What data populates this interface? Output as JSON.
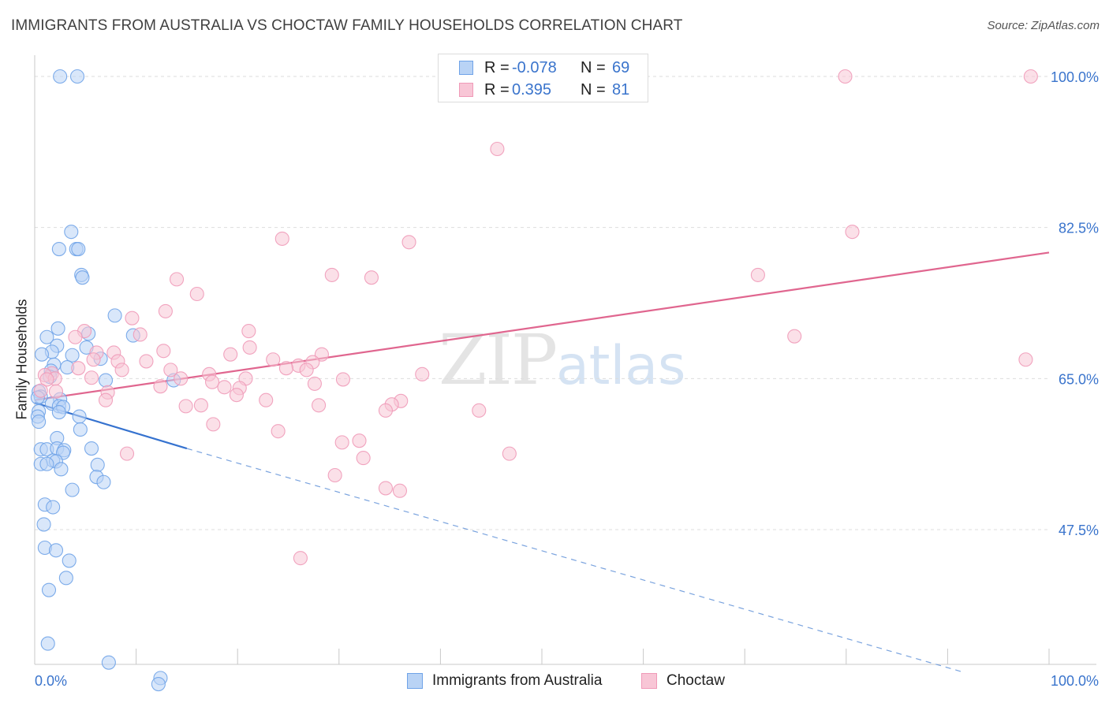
{
  "title": "IMMIGRANTS FROM AUSTRALIA VS CHOCTAW FAMILY HOUSEHOLDS CORRELATION CHART",
  "source": "Source: ZipAtlas.com",
  "watermark": {
    "zip": "ZIP",
    "atlas": "atlas"
  },
  "legend": {
    "rows": [
      {
        "r_label": "R =",
        "r_value": "-0.078",
        "n_label": "N =",
        "n_value": "69"
      },
      {
        "r_label": "R =",
        "r_value": "0.395",
        "n_label": "N =",
        "n_value": "81"
      }
    ]
  },
  "chart_data": {
    "type": "scatter",
    "title": "IMMIGRANTS FROM AUSTRALIA VS CHOCTAW FAMILY HOUSEHOLDS CORRELATION CHART",
    "xlabel": "",
    "ylabel": "Family Households",
    "xlim": [
      0,
      100
    ],
    "ylim": [
      31,
      101
    ],
    "x_tick_labels": [
      "0.0%",
      "100.0%"
    ],
    "y_ticks": [
      47.5,
      65.0,
      82.5,
      100.0
    ],
    "y_tick_labels": [
      "47.5%",
      "65.0%",
      "82.5%",
      "100.0%"
    ],
    "grid": true,
    "legend_position": "top-center",
    "series": [
      {
        "name": "Immigrants from Australia",
        "color": "#6fa3e8",
        "fill": "#b9d3f5",
        "r": -0.078,
        "n": 69,
        "trend": {
          "x0": 0,
          "y0": 62.2,
          "x1": 15,
          "y1": 56.9,
          "dashed_to_x": 91.5,
          "dashed_to_y": 31
        },
        "points": [
          [
            2.5,
            100
          ],
          [
            4.2,
            100
          ],
          [
            3.6,
            82
          ],
          [
            2.4,
            80
          ],
          [
            4.1,
            80
          ],
          [
            4.3,
            80
          ],
          [
            4.6,
            77
          ],
          [
            4.7,
            76.7
          ],
          [
            7.9,
            72.3
          ],
          [
            2.3,
            70.8
          ],
          [
            1.2,
            69.8
          ],
          [
            5.3,
            70.2
          ],
          [
            9.7,
            70
          ],
          [
            2.2,
            68.8
          ],
          [
            1.7,
            68.1
          ],
          [
            3.7,
            67.7
          ],
          [
            0.7,
            67.8
          ],
          [
            6.5,
            67.3
          ],
          [
            5.1,
            68.6
          ],
          [
            1.9,
            66.6
          ],
          [
            1.6,
            65.9
          ],
          [
            1.5,
            65.2
          ],
          [
            3.2,
            66.3
          ],
          [
            7,
            64.8
          ],
          [
            13.7,
            64.8
          ],
          [
            0.4,
            63.5
          ],
          [
            0.6,
            62.9
          ],
          [
            2.5,
            62.6
          ],
          [
            0.3,
            62.8
          ],
          [
            1.7,
            62.1
          ],
          [
            2.4,
            61.8
          ],
          [
            2.8,
            61.7
          ],
          [
            0.4,
            61.2
          ],
          [
            2.4,
            61.1
          ],
          [
            0.3,
            60.6
          ],
          [
            0.4,
            60
          ],
          [
            4.4,
            60.6
          ],
          [
            4.5,
            59.1
          ],
          [
            2.2,
            58.1
          ],
          [
            0.6,
            56.8
          ],
          [
            1.2,
            56.8
          ],
          [
            2.2,
            56.9
          ],
          [
            2.9,
            56.7
          ],
          [
            5.6,
            56.9
          ],
          [
            2.8,
            56.4
          ],
          [
            1.8,
            55.5
          ],
          [
            2.1,
            55.4
          ],
          [
            0.6,
            55.1
          ],
          [
            1.2,
            55.1
          ],
          [
            6.2,
            55
          ],
          [
            2.6,
            54.5
          ],
          [
            6.1,
            53.6
          ],
          [
            6.8,
            53
          ],
          [
            3.7,
            52.1
          ],
          [
            1,
            50.4
          ],
          [
            1.8,
            50.1
          ],
          [
            0.9,
            48.1
          ],
          [
            1,
            45.4
          ],
          [
            2.1,
            45.1
          ],
          [
            3.4,
            43.9
          ],
          [
            3.1,
            41.9
          ],
          [
            1.4,
            40.5
          ],
          [
            1.3,
            34.3
          ],
          [
            7.3,
            32.1
          ],
          [
            12.4,
            30.3
          ],
          [
            12.2,
            29.6
          ]
        ]
      },
      {
        "name": "Choctaw",
        "color": "#f09ab8",
        "fill": "#f8c6d6",
        "r": 0.395,
        "n": 81,
        "trend": {
          "x0": 0,
          "y0": 62.5,
          "x1": 100,
          "y1": 79.6
        },
        "points": [
          [
            79.9,
            100
          ],
          [
            98.2,
            100
          ],
          [
            45.6,
            91.6
          ],
          [
            80.6,
            82
          ],
          [
            24.4,
            81.2
          ],
          [
            36.9,
            80.8
          ],
          [
            71.3,
            77
          ],
          [
            29.3,
            77
          ],
          [
            33.2,
            76.7
          ],
          [
            14,
            76.5
          ],
          [
            16,
            74.8
          ],
          [
            12.9,
            72.8
          ],
          [
            9.6,
            72
          ],
          [
            21.1,
            70.5
          ],
          [
            4.9,
            70.5
          ],
          [
            10.4,
            70.1
          ],
          [
            4,
            69.8
          ],
          [
            74.9,
            69.9
          ],
          [
            21.2,
            68.6
          ],
          [
            12.7,
            68.2
          ],
          [
            6.1,
            68
          ],
          [
            7.8,
            68
          ],
          [
            19.3,
            67.8
          ],
          [
            28.3,
            67.8
          ],
          [
            23.5,
            67.2
          ],
          [
            11,
            67
          ],
          [
            97.7,
            67.2
          ],
          [
            5.8,
            67.2
          ],
          [
            8.2,
            67
          ],
          [
            27.4,
            66.9
          ],
          [
            26,
            66.5
          ],
          [
            4.3,
            66.2
          ],
          [
            24.8,
            66.2
          ],
          [
            8.6,
            66
          ],
          [
            26.8,
            66
          ],
          [
            13.4,
            66
          ],
          [
            1.7,
            65.6
          ],
          [
            38.2,
            65.5
          ],
          [
            17.2,
            65.5
          ],
          [
            1,
            65.4
          ],
          [
            2,
            65
          ],
          [
            1.2,
            64.9
          ],
          [
            14.4,
            65
          ],
          [
            5.6,
            65.1
          ],
          [
            20.8,
            65
          ],
          [
            17.5,
            64.6
          ],
          [
            30.4,
            64.9
          ],
          [
            27.6,
            64.4
          ],
          [
            12.4,
            64.1
          ],
          [
            18.7,
            64
          ],
          [
            20.2,
            63.9
          ],
          [
            7.2,
            63.4
          ],
          [
            2.1,
            63.5
          ],
          [
            19.9,
            63.1
          ],
          [
            0.6,
            63.6
          ],
          [
            7,
            62.5
          ],
          [
            22.8,
            62.5
          ],
          [
            36.1,
            62.4
          ],
          [
            35.2,
            62
          ],
          [
            16.4,
            61.9
          ],
          [
            28,
            61.9
          ],
          [
            14.9,
            61.8
          ],
          [
            34.6,
            61.3
          ],
          [
            43.8,
            61.3
          ],
          [
            17.6,
            59.7
          ],
          [
            24,
            58.9
          ],
          [
            30.3,
            57.6
          ],
          [
            32,
            57.8
          ],
          [
            9.1,
            56.3
          ],
          [
            46.8,
            56.3
          ],
          [
            32.4,
            55.8
          ],
          [
            29.6,
            53.8
          ],
          [
            34.6,
            52.3
          ],
          [
            36,
            52
          ],
          [
            26.2,
            44.2
          ]
        ]
      }
    ]
  },
  "bottom_legend": {
    "items": [
      {
        "label": "Immigrants from Australia",
        "color": "#b9d3f5",
        "border": "#6fa3e8"
      },
      {
        "label": "Choctaw",
        "color": "#f8c6d6",
        "border": "#f09ab8"
      }
    ]
  }
}
